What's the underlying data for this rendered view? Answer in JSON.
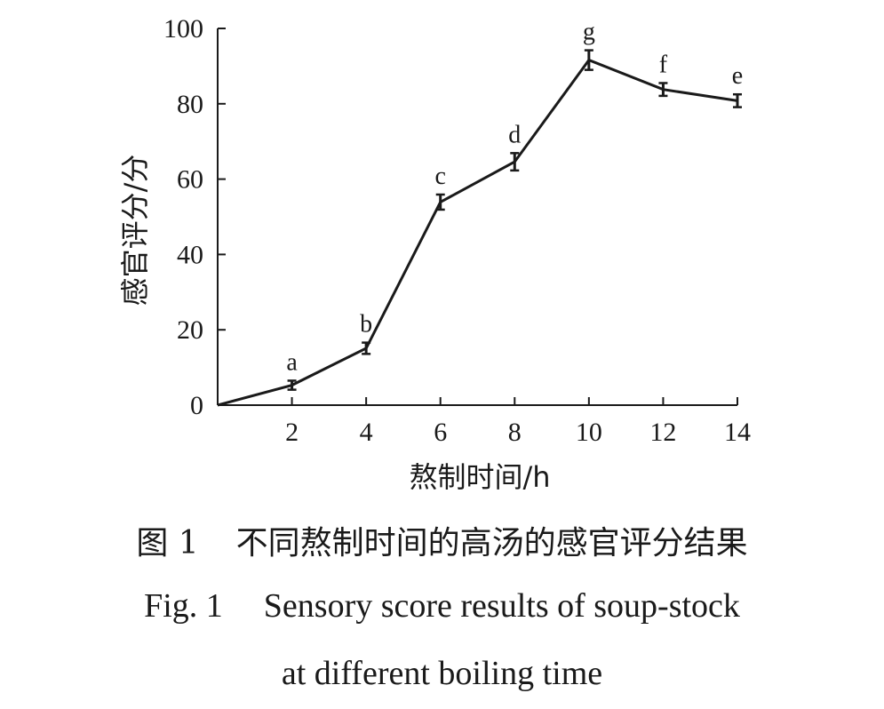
{
  "chart_data": {
    "type": "line",
    "x": [
      0,
      2,
      4,
      6,
      8,
      10,
      12,
      14
    ],
    "series": [
      {
        "values": [
          0,
          5.3,
          15.1,
          53.9,
          64.6,
          91.6,
          83.8,
          80.8
        ],
        "errors": [
          null,
          1.2,
          1.5,
          2.0,
          2.3,
          2.6,
          1.7,
          1.7
        ],
        "significance_labels": [
          null,
          "a",
          "b",
          "c",
          "d",
          "g",
          "f",
          "e"
        ]
      }
    ],
    "x_ticks": [
      "2",
      "4",
      "6",
      "8",
      "10",
      "12",
      "14"
    ],
    "y_ticks": [
      "0",
      "20",
      "40",
      "60",
      "80",
      "100"
    ],
    "xlim": [
      0,
      14
    ],
    "ylim": [
      0,
      100
    ],
    "xlabel": "熬制时间/h",
    "ylabel": "感官评分/分",
    "grid": false,
    "line_color": "#1a1a1a"
  },
  "caption": {
    "cn_number": "图 1",
    "cn_text": "不同熬制时间的高汤的感官评分结果",
    "en_number": "Fig. 1",
    "en_line1": "Sensory score results of soup-stock",
    "en_line2": "at different boiling time"
  }
}
